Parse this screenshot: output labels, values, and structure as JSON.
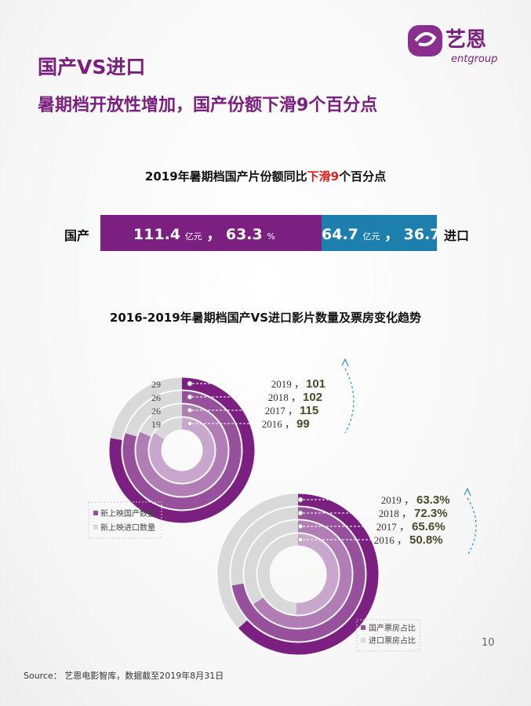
{
  "header": {
    "title": "国产VS进口",
    "subtitle": "暑期档开放性增加，国产份额下滑9个百分点",
    "logo_text": "艺恩",
    "logo_sub": "entgroup"
  },
  "share_section": {
    "title_before": "2019年暑期档国产片份额同比",
    "title_highlight": "下滑9",
    "title_after": "个百分点",
    "domestic_label": "国产",
    "import_label": "进口",
    "domestic_box_office": "111.4",
    "domestic_pct": "63.3",
    "import_box_office": "64.7",
    "import_pct": "36.7",
    "unit_yi": "亿元",
    "sep": "，",
    "pct_sign": "%"
  },
  "trend_section": {
    "title": "2016-2019年暑期档国产VS进口影片数量及票房变化趋势"
  },
  "source_text": "Source： 艺恩电影智库，数据截至2019年8月31日",
  "page_number": "10",
  "colors": {
    "purple": "#7b2081",
    "purple_1": "#7b2081",
    "purple_2": "#96509c",
    "purple_3": "#b07db5",
    "purple_4": "#c9a6cd",
    "grey": "#d9d9d9",
    "blue": "#1d7fae"
  },
  "chart_data": [
    {
      "type": "bar",
      "title": "2019年暑期档国产片份额同比下滑9个百分点",
      "categories": [
        "国产",
        "进口"
      ],
      "values": [
        63.3,
        36.7
      ],
      "box_office": [
        111.4,
        64.7
      ]
    },
    {
      "type": "pie",
      "subtype": "radial-ring",
      "years": [
        "2019",
        "2018",
        "2017",
        "2016"
      ],
      "series": [
        {
          "name": "新上映国产数量",
          "values": [
            101,
            102,
            115,
            99
          ]
        },
        {
          "name": "新上映进口数量",
          "values": [
            29,
            26,
            26,
            19
          ]
        }
      ]
    },
    {
      "type": "pie",
      "subtype": "radial-ring",
      "years": [
        "2019",
        "2018",
        "2017",
        "2016"
      ],
      "series": [
        {
          "name": "国产票房占比",
          "values": [
            63.3,
            72.3,
            65.6,
            50.8
          ]
        }
      ]
    }
  ]
}
